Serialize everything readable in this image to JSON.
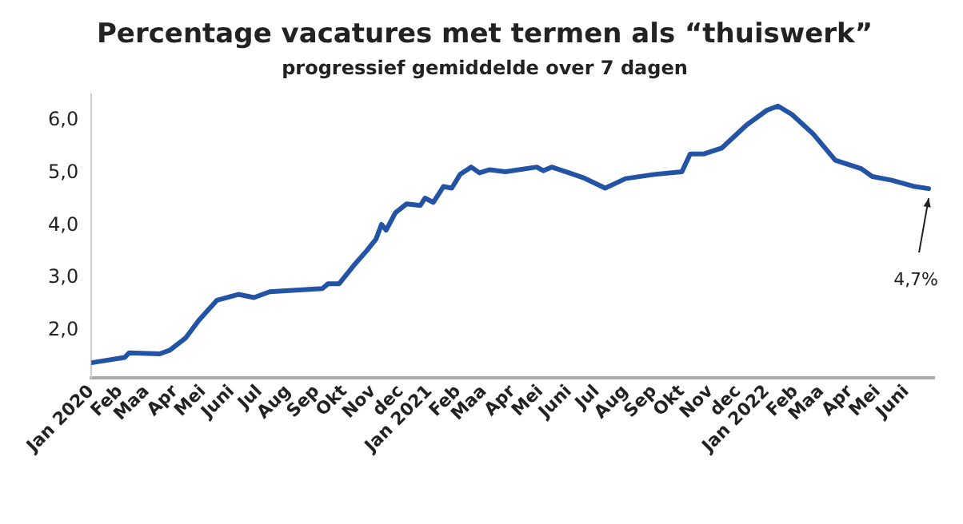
{
  "chart_data": {
    "type": "line",
    "title": "Percentage vacatures met termen als “thuiswerk”",
    "subtitle": "progressief gemiddelde over 7 dagen",
    "x": [
      "2020-01-01",
      "2020-02-06",
      "2020-02-11",
      "2020-03-15",
      "2020-03-26",
      "2020-04-12",
      "2020-04-26",
      "2020-05-16",
      "2020-06-08",
      "2020-06-25",
      "2020-07-12",
      "2020-09-07",
      "2020-09-13",
      "2020-09-25",
      "2020-10-11",
      "2020-10-25",
      "2020-11-04",
      "2020-11-10",
      "2020-11-15",
      "2020-11-25",
      "2020-12-07",
      "2020-12-22",
      "2020-12-27",
      "2021-01-05",
      "2021-01-16",
      "2021-01-25",
      "2021-02-03",
      "2021-02-15",
      "2021-02-24",
      "2021-03-07",
      "2021-03-24",
      "2021-04-27",
      "2021-05-04",
      "2021-05-13",
      "2021-06-01",
      "2021-06-16",
      "2021-07-10",
      "2021-08-01",
      "2021-09-01",
      "2021-10-01",
      "2021-10-10",
      "2021-10-25",
      "2021-11-13",
      "2021-12-10",
      "2022-01-01",
      "2022-01-13",
      "2022-01-28",
      "2022-02-20",
      "2022-03-16",
      "2022-04-13",
      "2022-04-25",
      "2022-05-16",
      "2022-06-10",
      "2022-06-25"
    ],
    "series": [
      {
        "color": "#2353a4",
        "values": [
          1.39,
          1.49,
          1.58,
          1.56,
          1.63,
          1.86,
          2.19,
          2.58,
          2.69,
          2.63,
          2.74,
          2.8,
          2.89,
          2.89,
          3.24,
          3.52,
          3.74,
          4.02,
          3.91,
          4.24,
          4.41,
          4.38,
          4.52,
          4.44,
          4.74,
          4.71,
          4.97,
          5.11,
          5.0,
          5.06,
          5.02,
          5.11,
          5.04,
          5.11,
          5.0,
          4.91,
          4.71,
          4.89,
          4.97,
          5.02,
          5.36,
          5.36,
          5.47,
          5.91,
          6.19,
          6.27,
          6.11,
          5.74,
          5.24,
          5.08,
          4.93,
          4.86,
          4.74,
          4.7
        ]
      }
    ],
    "xlim": [
      "2020-01-01",
      "2022-07-01"
    ],
    "xticks": [
      {
        "value": "2020-01-01",
        "label": "Jan 2020"
      },
      {
        "value": "2020-02-01",
        "label": "Feb"
      },
      {
        "value": "2020-03-01",
        "label": "Maa"
      },
      {
        "value": "2020-04-01",
        "label": "Apr"
      },
      {
        "value": "2020-05-01",
        "label": "Mei"
      },
      {
        "value": "2020-06-01",
        "label": "Juni"
      },
      {
        "value": "2020-07-01",
        "label": "Jul"
      },
      {
        "value": "2020-08-01",
        "label": "Aug"
      },
      {
        "value": "2020-09-01",
        "label": "Sep"
      },
      {
        "value": "2020-10-01",
        "label": "Okt"
      },
      {
        "value": "2020-11-01",
        "label": "Nov"
      },
      {
        "value": "2020-12-01",
        "label": "dec"
      },
      {
        "value": "2021-01-01",
        "label": "Jan 2021"
      },
      {
        "value": "2021-02-01",
        "label": "Feb"
      },
      {
        "value": "2021-03-01",
        "label": "Maa"
      },
      {
        "value": "2021-04-01",
        "label": "Apr"
      },
      {
        "value": "2021-05-01",
        "label": "Mei"
      },
      {
        "value": "2021-06-01",
        "label": "Juni"
      },
      {
        "value": "2021-07-01",
        "label": "Jul"
      },
      {
        "value": "2021-08-01",
        "label": "Aug"
      },
      {
        "value": "2021-09-01",
        "label": "Sep"
      },
      {
        "value": "2021-10-01",
        "label": "Okt"
      },
      {
        "value": "2021-11-01",
        "label": "Nov"
      },
      {
        "value": "2021-12-01",
        "label": "dec"
      },
      {
        "value": "2022-01-01",
        "label": "Jan 2022"
      },
      {
        "value": "2022-02-01",
        "label": "Feb"
      },
      {
        "value": "2022-03-01",
        "label": "Maa"
      },
      {
        "value": "2022-04-01",
        "label": "Apr"
      },
      {
        "value": "2022-05-01",
        "label": "Mei"
      },
      {
        "value": "2022-06-01",
        "label": "Juni"
      }
    ],
    "ylim": [
      1.1,
      6.5
    ],
    "yticks": [
      {
        "value": 2,
        "label": "2,0"
      },
      {
        "value": 3,
        "label": "3,0"
      },
      {
        "value": 4,
        "label": "4,0"
      },
      {
        "value": 5,
        "label": "5,0"
      },
      {
        "value": 6,
        "label": "6,0"
      }
    ],
    "grid": false,
    "legend": false,
    "marker": "none",
    "line_style": "solid",
    "annotations": [
      {
        "text": "4,7%",
        "x": "2022-06-25",
        "y": 4.7
      }
    ]
  }
}
